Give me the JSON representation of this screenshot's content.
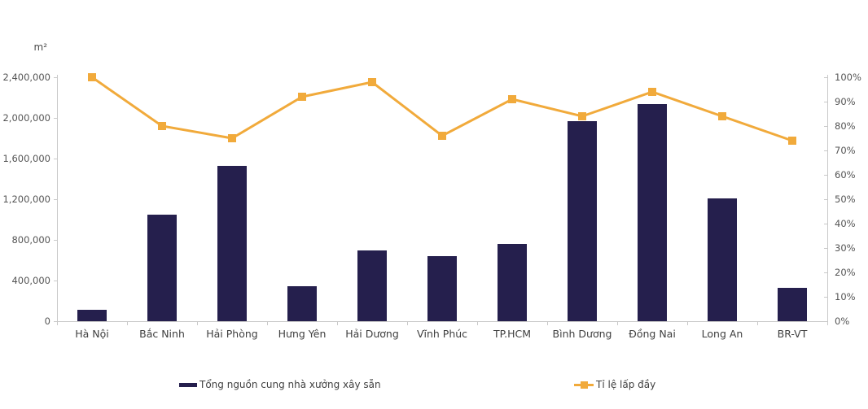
{
  "chart_data": {
    "type": "combo_bar_line",
    "title": "",
    "categories": [
      "Hà Nội",
      "Bắc Ninh",
      "Hải Phòng",
      "Hưng Yên",
      "Hải Dương",
      "Vĩnh Phúc",
      "TP.HCM",
      "Bình Dương",
      "Đồng Nai",
      "Long An",
      "BR-VT"
    ],
    "series": [
      {
        "name": "Tổng nguồn cung nhà xưởng xây sẵn",
        "type": "bar",
        "axis": "left",
        "color": "#251f4d",
        "values": [
          110000,
          1050000,
          1530000,
          345000,
          700000,
          640000,
          760000,
          1970000,
          2140000,
          1210000,
          330000
        ]
      },
      {
        "name": "Tỉ lệ lấp đầy",
        "type": "line",
        "axis": "right",
        "color": "#f1aa3b",
        "values": [
          100,
          80,
          75,
          92,
          98,
          76,
          91,
          84,
          94,
          84,
          74
        ]
      }
    ],
    "left_axis": {
      "unit_label": "m²",
      "min": 0,
      "max": 2400000,
      "tick_step": 400000,
      "tick_labels": [
        "0",
        "400,000",
        "800,000",
        "1,200,000",
        "1,600,000",
        "2,000,000",
        "2,400,000"
      ]
    },
    "right_axis": {
      "min": 0,
      "max": 100,
      "tick_step": 10,
      "tick_labels": [
        "0%",
        "10%",
        "20%",
        "30%",
        "40%",
        "50%",
        "60%",
        "70%",
        "80%",
        "90%",
        "100%"
      ]
    },
    "grid": false,
    "legend_position": "bottom"
  },
  "colors": {
    "bar": "#251f4d",
    "line": "#f1aa3b",
    "axis": "#c9c9c9",
    "tick_text": "#555555"
  }
}
